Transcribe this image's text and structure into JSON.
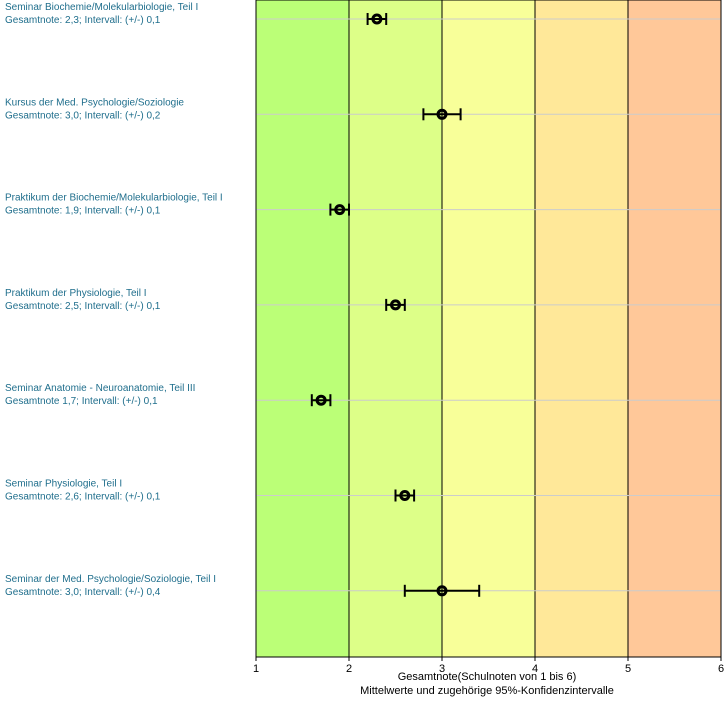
{
  "chart_data": {
    "type": "errorbar",
    "xlabel": "Gesamtnote(Schulnoten von 1 bis 6)",
    "subtitle": "Mittelwerte und zugehörige 95%-Konfidenzintervalle",
    "xlim": [
      1,
      6
    ],
    "x_ticks": [
      "1",
      "2",
      "3",
      "4",
      "5",
      "6"
    ],
    "grid": true,
    "bands": [
      {
        "from": 1,
        "to": 2,
        "color": "#bbff77"
      },
      {
        "from": 2,
        "to": 3,
        "color": "#ddff88"
      },
      {
        "from": 3,
        "to": 4,
        "color": "#f8ff99"
      },
      {
        "from": 4,
        "to": 5,
        "color": "#ffe899"
      },
      {
        "from": 5,
        "to": 6,
        "color": "#ffc899"
      }
    ],
    "rows": [
      {
        "name": "Seminar Biochemie/Molekularbiologie, Teil I",
        "summary": "Gesamtnote: 2,3;  Intervall: (+/-) 0,1",
        "mean": 2.3,
        "ci": 0.1
      },
      {
        "name": "Kursus der Med. Psychologie/Soziologie",
        "summary": "Gesamtnote: 3,0;  Intervall: (+/-) 0,2",
        "mean": 3.0,
        "ci": 0.2
      },
      {
        "name": "Praktikum der Biochemie/Molekularbiologie, Teil I",
        "summary": "Gesamtnote: 1,9;  Intervall: (+/-) 0,1",
        "mean": 1.9,
        "ci": 0.1
      },
      {
        "name": "Praktikum der Physiologie, Teil I",
        "summary": "Gesamtnote: 2,5;  Intervall: (+/-) 0,1",
        "mean": 2.5,
        "ci": 0.1
      },
      {
        "name": "Seminar Anatomie - Neuroanatomie, Teil III",
        "summary": "Gesamtnote 1,7;  Intervall: (+/-) 0,1",
        "mean": 1.7,
        "ci": 0.1
      },
      {
        "name": "Seminar Physiologie, Teil I",
        "summary": "Gesamtnote: 2,6;  Intervall: (+/-) 0,1",
        "mean": 2.6,
        "ci": 0.1
      },
      {
        "name": "Seminar der Med. Psychologie/Soziologie, Teil I",
        "summary": "Gesamtnote: 3,0;  Intervall: (+/-) 0,4",
        "mean": 3.0,
        "ci": 0.4
      }
    ]
  },
  "style": {
    "row_label_color": "#1f6e8c",
    "row_line_color": "#cccccc",
    "axis_color": "#000000"
  }
}
